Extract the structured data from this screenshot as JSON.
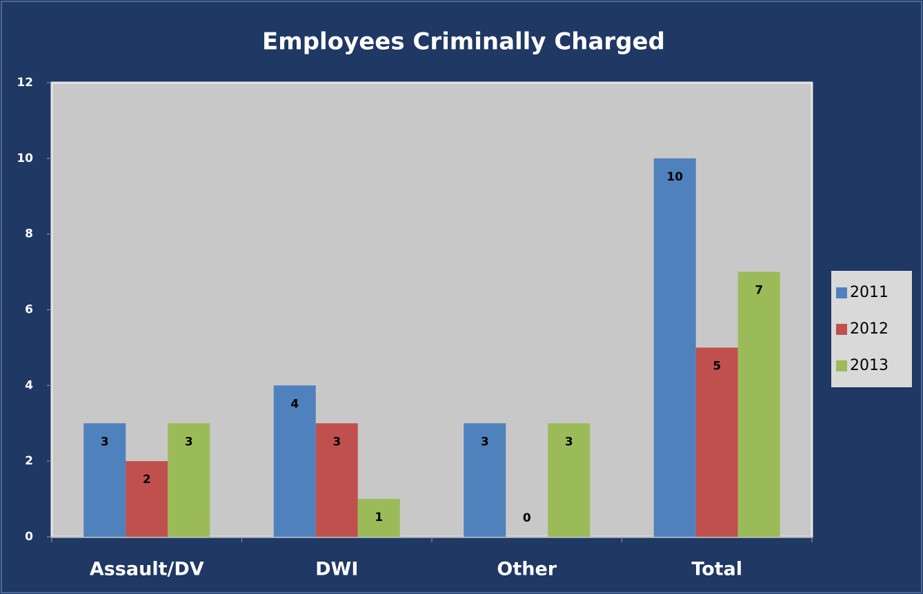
{
  "chart_data": {
    "type": "bar",
    "title": "Employees Criminally Charged",
    "categories": [
      "Assault/DV",
      "DWI",
      "Other",
      "Total"
    ],
    "series": [
      {
        "name": "2011",
        "color": "#4f81bd",
        "values": [
          3,
          4,
          3,
          10
        ]
      },
      {
        "name": "2012",
        "color": "#c0504d",
        "values": [
          2,
          3,
          0,
          5
        ]
      },
      {
        "name": "2013",
        "color": "#9bbb59",
        "values": [
          3,
          1,
          3,
          7
        ]
      }
    ],
    "ylim": [
      0,
      12
    ],
    "yticks": [
      0,
      2,
      4,
      6,
      8,
      10,
      12
    ],
    "legend": "right",
    "data_labels": true
  }
}
